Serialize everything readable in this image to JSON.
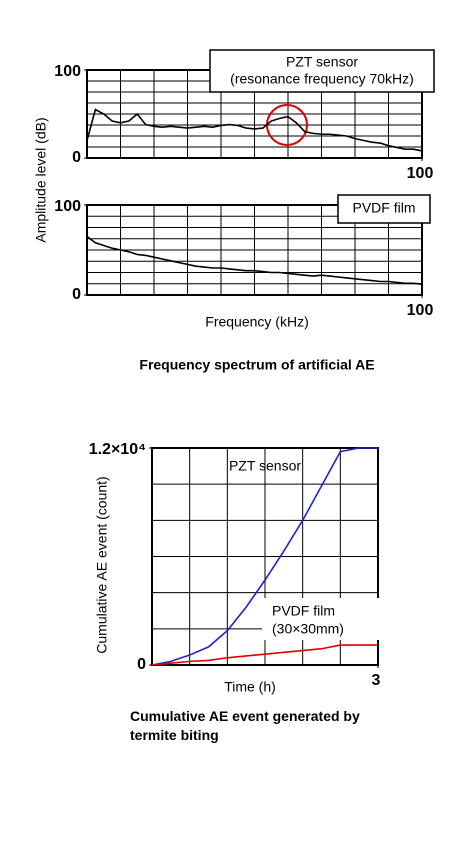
{
  "chart_data": [
    {
      "type": "line",
      "ylabel": "Amplitude level (dB)",
      "x": [
        0,
        2.5,
        5,
        7.5,
        10,
        12.5,
        15,
        17.5,
        20,
        22.5,
        25,
        27.5,
        30,
        32.5,
        35,
        37.5,
        40,
        42.5,
        45,
        47.5,
        50,
        52.5,
        55,
        57.5,
        60,
        62.5,
        65,
        67.5,
        70,
        72.5,
        75,
        77.5,
        80,
        82.5,
        85,
        87.5,
        90,
        92.5,
        95,
        97.5,
        100
      ],
      "series": [
        {
          "name": "PZT sensor",
          "color": "#000000",
          "values": [
            20,
            55,
            50,
            42,
            40,
            42,
            50,
            38,
            36,
            35,
            36,
            35,
            34,
            35,
            36,
            35,
            37,
            38,
            37,
            34,
            33,
            34,
            42,
            45,
            47,
            40,
            30,
            28,
            27,
            27,
            26,
            25,
            22,
            20,
            18,
            17,
            14,
            12,
            10,
            10,
            8
          ]
        }
      ],
      "annotations": [
        "(resonance frequency 70kHz)"
      ],
      "xlim": [
        0,
        100
      ],
      "ylim": [
        0,
        100
      ],
      "xticks": [
        100
      ],
      "yticks": [
        0,
        100
      ],
      "grid_divisions": [
        10,
        8
      ]
    },
    {
      "type": "line",
      "xlabel": "Frequency (kHz)",
      "caption": "Frequency spectrum of artificial AE",
      "x": [
        0,
        2.5,
        5,
        7.5,
        10,
        12.5,
        15,
        17.5,
        20,
        22.5,
        25,
        27.5,
        30,
        32.5,
        35,
        37.5,
        40,
        42.5,
        45,
        47.5,
        50,
        52.5,
        55,
        57.5,
        60,
        62.5,
        65,
        67.5,
        70,
        72.5,
        75,
        77.5,
        80,
        82.5,
        85,
        87.5,
        90,
        92.5,
        95,
        97.5,
        100
      ],
      "series": [
        {
          "name": "PVDF film",
          "color": "#000000",
          "values": [
            65,
            58,
            55,
            52,
            50,
            48,
            45,
            44,
            42,
            40,
            38,
            36,
            34,
            32,
            31,
            30,
            30,
            29,
            28,
            27,
            27,
            26,
            25,
            25,
            24,
            23,
            22,
            21,
            22,
            21,
            20,
            19,
            18,
            17,
            16,
            15,
            15,
            14,
            13,
            13,
            12
          ]
        }
      ],
      "xlim": [
        0,
        100
      ],
      "ylim": [
        0,
        100
      ],
      "xticks": [
        100
      ],
      "yticks": [
        0,
        100
      ],
      "grid_divisions": [
        10,
        8
      ]
    },
    {
      "type": "line",
      "xlabel": "Time (h)",
      "ylabel": "Cumulative AE event (count)",
      "caption": "Cumulative AE event generated by termite biting",
      "x": [
        0,
        0.25,
        0.5,
        0.75,
        1,
        1.25,
        1.5,
        1.75,
        2,
        2.25,
        2.5,
        2.75,
        3
      ],
      "series": [
        {
          "name": "PZT sensor",
          "color": "#2222cc",
          "values": [
            0,
            200,
            550,
            1000,
            1900,
            3200,
            4700,
            6300,
            8000,
            9900,
            11800,
            12000,
            12000
          ]
        },
        {
          "name": "PVDF film",
          "color": "#dd0000",
          "values": [
            0,
            100,
            200,
            250,
            400,
            500,
            600,
            700,
            800,
            900,
            1100,
            1100,
            1100
          ]
        }
      ],
      "annotations": [
        "(30×30mm)"
      ],
      "xlim": [
        0,
        3
      ],
      "ylim": [
        0,
        12000
      ],
      "xticks": [
        3
      ],
      "yticks": [
        0,
        {
          "value": 12000,
          "label": "1.2×10⁴"
        }
      ],
      "grid_divisions": [
        6,
        6
      ]
    }
  ]
}
